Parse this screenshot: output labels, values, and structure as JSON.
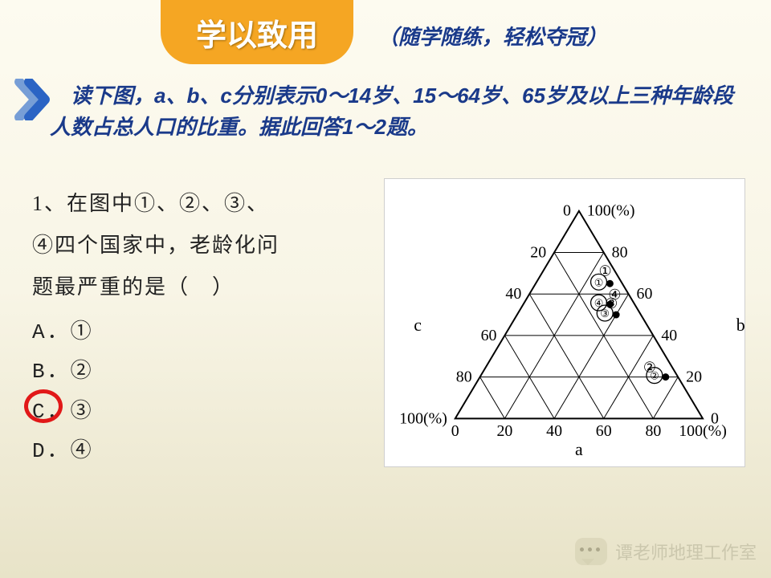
{
  "header": {
    "title": "学以致用",
    "subtitle": "（随学随练，轻松夺冠）"
  },
  "intro": "读下图，a、b、c分别表示0～14岁、15～64岁、65岁及以上三种年龄段人数占总人口的比重。据此回答1～2题。",
  "question": {
    "stem_lines": [
      "1、在图中①、②、③、",
      "④四个国家中，老龄化问",
      "题最严重的是（　）"
    ],
    "options": [
      "A．①",
      "B．②",
      "C．③",
      "D．④"
    ],
    "correct_index": 2,
    "answer_circle_color": "#e11818"
  },
  "ternary": {
    "type": "ternary",
    "axes": {
      "a_bottom": "a",
      "b_right": "b",
      "c_left": "c"
    },
    "tick_step": 20,
    "bottom_ticks": [
      "0",
      "20",
      "40",
      "60",
      "80",
      "100(%)"
    ],
    "left_ticks_top_to_bottom": [
      "0",
      "20",
      "40",
      "60",
      "80",
      "100(%)"
    ],
    "right_ticks_top_to_bottom": [
      "100(%)",
      "80",
      "60",
      "40",
      "20",
      "0"
    ],
    "apex_label": "0",
    "points": [
      {
        "id": "①",
        "a": 30,
        "b": 65,
        "c": 5
      },
      {
        "id": "②",
        "a": 75,
        "b": 20,
        "c": 5
      },
      {
        "id": "③",
        "a": 40,
        "b": 50,
        "c": 10
      },
      {
        "id": "④",
        "a": 35,
        "b": 55,
        "c": 10
      }
    ],
    "line_color": "#000000",
    "point_color": "#000000",
    "background_color": "#ffffff"
  },
  "watermark": "谭老师地理工作室",
  "colors": {
    "pill": "#f5a623",
    "accent_blue": "#1a3a8a",
    "arrow": "#2b64c4",
    "page_bg_top": "#fdfbf0",
    "page_bg_bottom": "#e8e3c8"
  }
}
